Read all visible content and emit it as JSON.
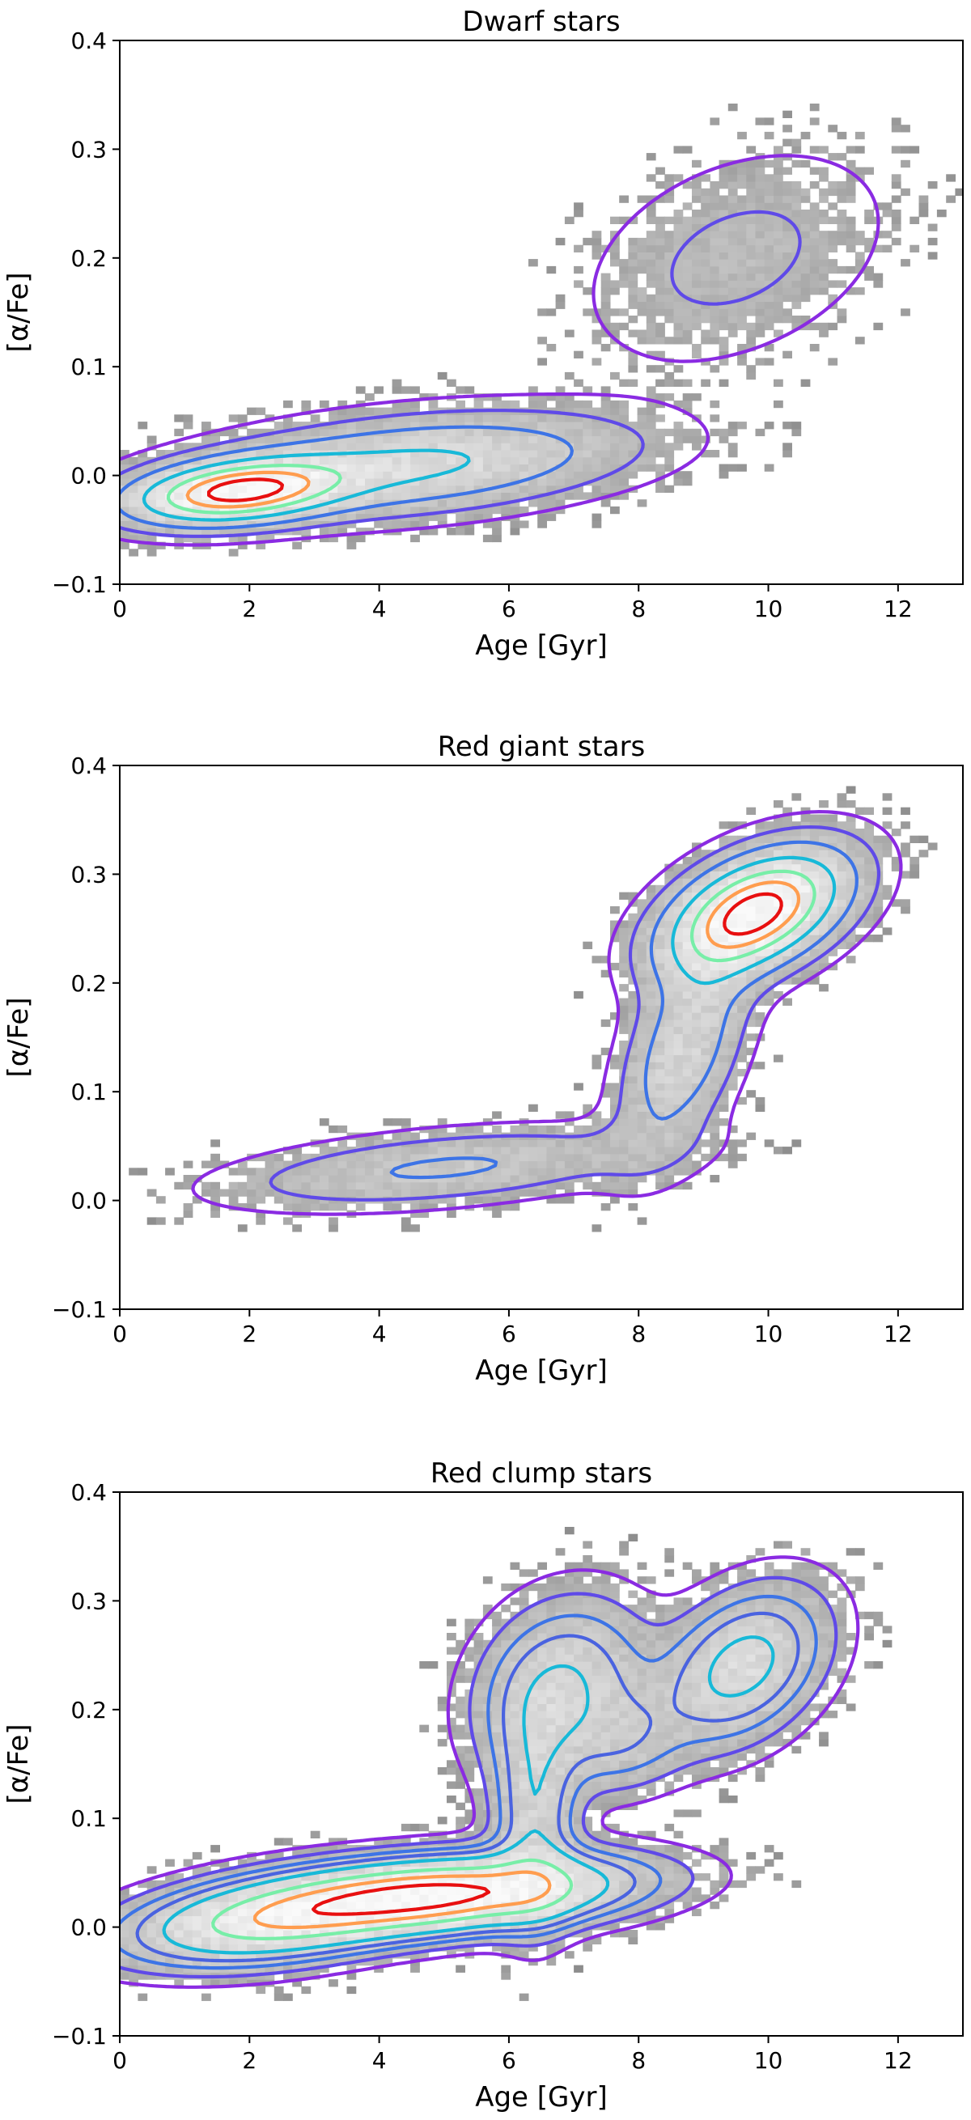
{
  "chart_data": [
    {
      "type": "heatmap",
      "title": "Dwarf stars",
      "xlabel": "Age [Gyr]",
      "ylabel": "[α/Fe]",
      "xlim": [
        0,
        13
      ],
      "ylim": [
        -0.1,
        0.4
      ],
      "xticks": [
        "0",
        "2",
        "4",
        "6",
        "8",
        "10",
        "12"
      ],
      "yticks": [
        "−0.1",
        "0.0",
        "0.1",
        "0.2",
        "0.3",
        "0.4"
      ],
      "grid": false,
      "density_components": [
        {
          "x": 1.8,
          "y": -0.015,
          "sx": 1.0,
          "sy": 0.018,
          "rho": 0.3,
          "w": 1.0
        },
        {
          "x": 4.5,
          "y": 0.01,
          "sx": 2.0,
          "sy": 0.028,
          "rho": 0.35,
          "w": 0.45
        },
        {
          "x": 9.5,
          "y": 0.2,
          "sx": 1.4,
          "sy": 0.06,
          "rho": 0.35,
          "w": 0.12
        }
      ],
      "contour_levels": [
        {
          "level": 0.03,
          "color": "#8a2be2"
        },
        {
          "level": 0.08,
          "color": "#5f4ae8"
        },
        {
          "level": 0.18,
          "color": "#3d74e6"
        },
        {
          "level": 0.35,
          "color": "#18b9d8"
        },
        {
          "level": 0.55,
          "color": "#78eea8"
        },
        {
          "level": 0.72,
          "color": "#ff9d4f"
        },
        {
          "level": 0.88,
          "color": "#e81010"
        }
      ]
    },
    {
      "type": "heatmap",
      "title": "Red giant stars",
      "xlabel": "Age [Gyr]",
      "ylabel": "[α/Fe]",
      "xlim": [
        0,
        13
      ],
      "ylim": [
        -0.1,
        0.4
      ],
      "xticks": [
        "0",
        "2",
        "4",
        "6",
        "8",
        "10",
        "12"
      ],
      "yticks": [
        "−0.1",
        "0.0",
        "0.1",
        "0.2",
        "0.3",
        "0.4"
      ],
      "grid": false,
      "density_components": [
        {
          "x": 9.8,
          "y": 0.265,
          "sx": 0.85,
          "sy": 0.035,
          "rho": 0.45,
          "w": 1.0
        },
        {
          "x": 8.7,
          "y": 0.14,
          "sx": 0.6,
          "sy": 0.06,
          "rho": 0.5,
          "w": 0.3
        },
        {
          "x": 5.0,
          "y": 0.03,
          "sx": 2.0,
          "sy": 0.022,
          "rho": 0.45,
          "w": 0.2
        }
      ],
      "contour_levels": [
        {
          "level": 0.03,
          "color": "#8a2be2"
        },
        {
          "level": 0.08,
          "color": "#5f4ae8"
        },
        {
          "level": 0.18,
          "color": "#3d74e6"
        },
        {
          "level": 0.35,
          "color": "#18b9d8"
        },
        {
          "level": 0.55,
          "color": "#78eea8"
        },
        {
          "level": 0.72,
          "color": "#ff9d4f"
        },
        {
          "level": 0.88,
          "color": "#e81010"
        }
      ]
    },
    {
      "type": "heatmap",
      "title": "Red clump stars",
      "xlabel": "Age [Gyr]",
      "ylabel": "[α/Fe]",
      "xlim": [
        0,
        13
      ],
      "ylim": [
        -0.1,
        0.4
      ],
      "xticks": [
        "0",
        "2",
        "4",
        "6",
        "8",
        "10",
        "12"
      ],
      "yticks": [
        "−0.1",
        "0.0",
        "0.1",
        "0.2",
        "0.3",
        "0.4"
      ],
      "grid": false,
      "density_components": [
        {
          "x": 5.0,
          "y": 0.03,
          "sx": 1.7,
          "sy": 0.022,
          "rho": 0.3,
          "w": 1.0
        },
        {
          "x": 2.3,
          "y": 0.005,
          "sx": 1.4,
          "sy": 0.025,
          "rho": 0.35,
          "w": 0.6
        },
        {
          "x": 9.6,
          "y": 0.24,
          "sx": 0.8,
          "sy": 0.045,
          "rho": 0.35,
          "w": 0.4
        },
        {
          "x": 6.8,
          "y": 0.22,
          "sx": 0.8,
          "sy": 0.05,
          "rho": 0.2,
          "w": 0.35
        },
        {
          "x": 6.4,
          "y": 0.1,
          "sx": 0.4,
          "sy": 0.06,
          "rho": 0.0,
          "w": 0.3
        },
        {
          "x": 7.8,
          "y": 0.17,
          "sx": 0.6,
          "sy": 0.03,
          "rho": 0.1,
          "w": 0.15
        }
      ],
      "contour_levels": [
        {
          "level": 0.03,
          "color": "#8a2be2"
        },
        {
          "level": 0.07,
          "color": "#5f4ae8"
        },
        {
          "level": 0.13,
          "color": "#3d74e6"
        },
        {
          "level": 0.2,
          "color": "#4a63e0"
        },
        {
          "level": 0.3,
          "color": "#18b9d8"
        },
        {
          "level": 0.52,
          "color": "#78eea8"
        },
        {
          "level": 0.7,
          "color": "#ff9d4f"
        },
        {
          "level": 0.88,
          "color": "#e81010"
        }
      ]
    }
  ]
}
